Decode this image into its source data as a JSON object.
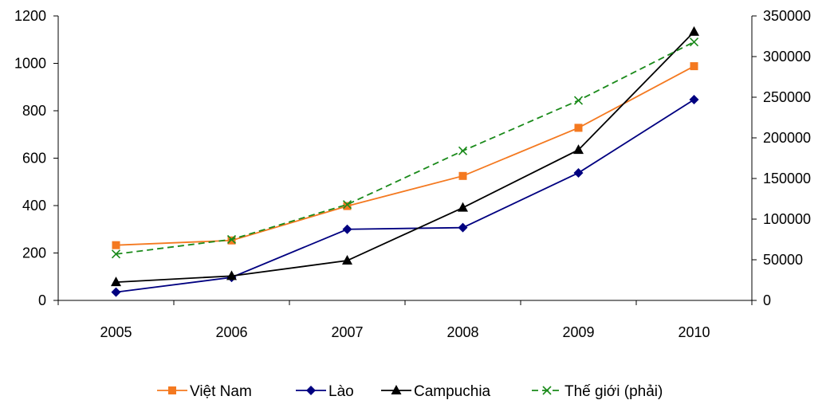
{
  "chart_data": {
    "type": "line",
    "title": "",
    "xlabel": "",
    "ylabel": "",
    "categories": [
      "2005",
      "2006",
      "2007",
      "2008",
      "2009",
      "2010"
    ],
    "y_left": {
      "range": [
        0,
        1200
      ],
      "ticks": [
        "0",
        "200",
        "400",
        "600",
        "800",
        "1000",
        "1200"
      ]
    },
    "y_right": {
      "range": [
        0,
        350000
      ],
      "ticks": [
        "0",
        "50000",
        "100000",
        "150000",
        "200000",
        "250000",
        "300000",
        "350000"
      ]
    },
    "grid": false,
    "legend_position": "bottom",
    "series": [
      {
        "name": "Việt Nam",
        "axis": "left",
        "color": "#f47920",
        "marker": "square",
        "dash": "solid",
        "values": [
          233,
          253,
          398,
          525,
          728,
          988
        ]
      },
      {
        "name": "Lào",
        "axis": "left",
        "color": "#000080",
        "marker": "diamond",
        "dash": "solid",
        "values": [
          35,
          97,
          300,
          307,
          538,
          847
        ]
      },
      {
        "name": "Campuchia",
        "axis": "left",
        "color": "#000000",
        "marker": "triangle",
        "dash": "solid",
        "values": [
          77,
          103,
          168,
          391,
          635,
          1133
        ]
      },
      {
        "name": "Thế giới (phải)",
        "axis": "right",
        "color": "#1a8a1a",
        "marker": "x",
        "dash": "dashed",
        "values": [
          57000,
          75000,
          118000,
          184000,
          246000,
          318000
        ]
      }
    ]
  }
}
